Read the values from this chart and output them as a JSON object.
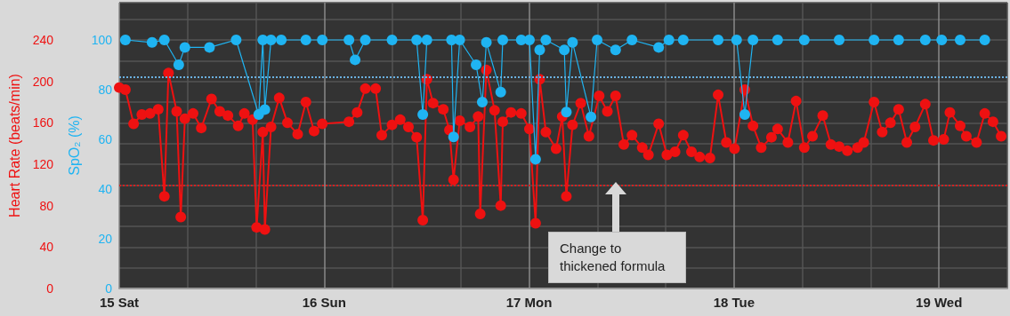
{
  "chart_data": {
    "type": "line",
    "ylabel": "Heart Rate (beats/min)",
    "y2label": "SpO₂ (%)",
    "xlim": [
      15,
      19.33
    ],
    "xticks": [
      {
        "value": 15,
        "label": "15 Sat"
      },
      {
        "value": 15.33,
        "label": null
      },
      {
        "value": 15.67,
        "label": null
      },
      {
        "value": 16,
        "label": "16 Sun"
      },
      {
        "value": 16.33,
        "label": null
      },
      {
        "value": 16.67,
        "label": null
      },
      {
        "value": 17,
        "label": "17 Mon"
      },
      {
        "value": 17.33,
        "label": null
      },
      {
        "value": 17.67,
        "label": null
      },
      {
        "value": 18,
        "label": "18 Tue"
      },
      {
        "value": 18.33,
        "label": null
      },
      {
        "value": 18.67,
        "label": null
      },
      {
        "value": 19,
        "label": "19 Wed"
      },
      {
        "value": 19.33,
        "label": null
      }
    ],
    "ylim": [
      0,
      276
    ],
    "yticks": [
      0,
      {
        "value": 20,
        "label": null
      },
      40,
      {
        "value": 60,
        "label": null
      },
      80,
      {
        "value": 100,
        "label": null
      },
      120,
      {
        "value": 140,
        "label": null
      },
      160,
      {
        "value": 180,
        "label": null
      },
      200,
      {
        "value": 220,
        "label": null
      },
      240,
      {
        "value": 260,
        "label": null
      }
    ],
    "y2lim": [
      0,
      115
    ],
    "y2ticks": [
      0,
      20,
      40,
      60,
      80,
      100
    ],
    "grid": true,
    "marker": "circle",
    "line_style": "solid",
    "series": [
      {
        "color": "#ee1111",
        "x": [
          15.0,
          15.03,
          15.07,
          15.11,
          15.15,
          15.19,
          15.22,
          15.24,
          15.28,
          15.3,
          15.32,
          15.36,
          15.4,
          15.45,
          15.49,
          15.53,
          15.58,
          15.61,
          15.65,
          15.67,
          15.7,
          15.71,
          15.74,
          15.78,
          15.82,
          15.87,
          15.91,
          15.95,
          15.99,
          16.12,
          16.16,
          16.2,
          16.25,
          16.28,
          16.33,
          16.37,
          16.41,
          16.45,
          16.48,
          16.5,
          16.53,
          16.58,
          16.61,
          16.63,
          16.66,
          16.71,
          16.75,
          16.76,
          16.79,
          16.83,
          16.86,
          16.87,
          16.91,
          16.96,
          17.0,
          17.03,
          17.05,
          17.08,
          17.13,
          17.16,
          17.18,
          17.21,
          17.25,
          17.29,
          17.34,
          17.38,
          17.42,
          17.46,
          17.5,
          17.55,
          17.58,
          17.63,
          17.67,
          17.71,
          17.75,
          17.79,
          17.83,
          17.88,
          17.92,
          17.96,
          18.0,
          18.05,
          18.09,
          18.13,
          18.18,
          18.21,
          18.26,
          18.3,
          18.34,
          18.38,
          18.43,
          18.47,
          18.51,
          18.55,
          18.6,
          18.63,
          18.68,
          18.72,
          18.76,
          18.8,
          18.84,
          18.88,
          18.93,
          18.97,
          19.02,
          19.05,
          19.1,
          19.13,
          19.18,
          19.22,
          19.26,
          19.3
        ],
        "values": [
          194,
          192,
          159,
          168,
          169,
          173,
          89,
          208,
          171,
          69,
          164,
          169,
          155,
          183,
          171,
          167,
          157,
          169,
          163,
          59,
          151,
          57,
          156,
          184,
          160,
          149,
          180,
          152,
          159,
          161,
          170,
          193,
          193,
          148,
          158,
          163,
          156,
          146,
          66,
          202,
          179,
          173,
          153,
          105,
          162,
          156,
          166,
          72,
          211,
          172,
          80,
          161,
          170,
          169,
          154,
          63,
          202,
          151,
          135,
          166,
          89,
          158,
          179,
          147,
          186,
          171,
          186,
          139,
          148,
          136,
          129,
          159,
          129,
          132,
          148,
          132,
          127,
          126,
          187,
          141,
          135,
          192,
          157,
          136,
          146,
          154,
          141,
          181,
          136,
          147,
          167,
          139,
          137,
          133,
          136,
          141,
          180,
          151,
          160,
          173,
          141,
          156,
          178,
          143,
          144,
          170,
          157,
          147,
          141,
          169,
          161,
          147
        ]
      },
      {
        "color": "#1fb4f2",
        "axis": "y2",
        "x": [
          15.03,
          15.16,
          15.22,
          15.29,
          15.32,
          15.44,
          15.57,
          15.68,
          15.7,
          15.71,
          15.74,
          15.79,
          15.91,
          15.99,
          16.12,
          16.15,
          16.2,
          16.33,
          16.45,
          16.48,
          16.5,
          16.62,
          16.63,
          16.66,
          16.74,
          16.77,
          16.79,
          16.86,
          16.87,
          16.96,
          17.0,
          17.03,
          17.05,
          17.08,
          17.17,
          17.18,
          17.21,
          17.3,
          17.33,
          17.42,
          17.5,
          17.63,
          17.68,
          17.75,
          17.92,
          18.01,
          18.05,
          18.09,
          18.21,
          18.34,
          18.51,
          18.68,
          18.8,
          18.93,
          19.01,
          19.1,
          19.22
        ],
        "values": [
          100,
          99,
          100,
          90,
          97,
          97,
          100,
          70,
          100,
          72,
          100,
          100,
          100,
          100,
          100,
          92,
          100,
          100,
          100,
          70,
          100,
          100,
          61,
          100,
          90,
          75,
          99,
          79,
          100,
          100,
          100,
          52,
          96,
          100,
          96,
          71,
          99,
          69,
          100,
          96,
          100,
          97,
          100,
          100,
          100,
          100,
          70,
          100,
          100,
          100,
          100,
          100,
          100,
          100,
          100,
          100,
          100
        ]
      }
    ],
    "ref_lines": [
      {
        "axis": "y",
        "value": 100,
        "color": "#d42020",
        "line_style": "dotted"
      },
      {
        "axis": "y2",
        "value": 85,
        "color": "#6ab0e0",
        "line_style": "dotted"
      }
    ],
    "annotations": [
      "Change to thickened formula"
    ]
  }
}
